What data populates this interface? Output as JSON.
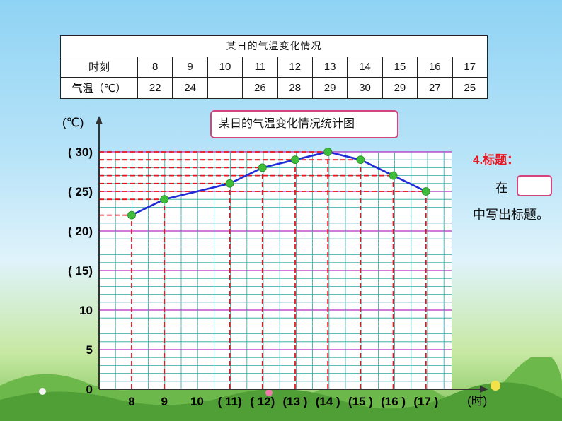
{
  "table": {
    "title": "某日的气温变化情况",
    "time_label": "时刻",
    "temp_label": "气温（℃）",
    "times": [
      "8",
      "9",
      "10",
      "11",
      "12",
      "13",
      "14",
      "15",
      "16",
      "17"
    ],
    "temps": [
      "22",
      "24",
      "",
      "26",
      "28",
      "29",
      "30",
      "29",
      "27",
      "25"
    ]
  },
  "chart_title": "某日的气温变化情况统计图",
  "side_note": {
    "heading": "4.标题：",
    "line1": "在",
    "line2": "中写出标题。"
  },
  "chart_data": {
    "type": "line",
    "title": "某日的气温变化情况统计图",
    "ylabel": "(℃)",
    "xlabel": "(时)",
    "x_ticks": [
      "8",
      "9",
      "10",
      "( 11)",
      "( 12)",
      "(13 )",
      "(14 )",
      "(15 )",
      "(16 )",
      "(17 )"
    ],
    "y_ticks": [
      {
        "value": 0,
        "label": "0"
      },
      {
        "value": 5,
        "label": "5"
      },
      {
        "value": 10,
        "label": "10"
      },
      {
        "value": 15,
        "label": "( 15)"
      },
      {
        "value": 20,
        "label": "( 20)"
      },
      {
        "value": 25,
        "label": "( 25)"
      },
      {
        "value": 30,
        "label": "( 30)"
      }
    ],
    "ylim": [
      0,
      30
    ],
    "x": [
      8,
      9,
      11,
      12,
      13,
      14,
      15,
      16,
      17
    ],
    "values": [
      22,
      24,
      26,
      28,
      29,
      30,
      29,
      27,
      25
    ],
    "series_color": "#1f2bd6",
    "point_color": "#3dbd3a",
    "guide_color": "#e8141e",
    "grid_minor_color": "#2aa6a0",
    "grid_major_color": "#b02fc0",
    "grid": true
  }
}
